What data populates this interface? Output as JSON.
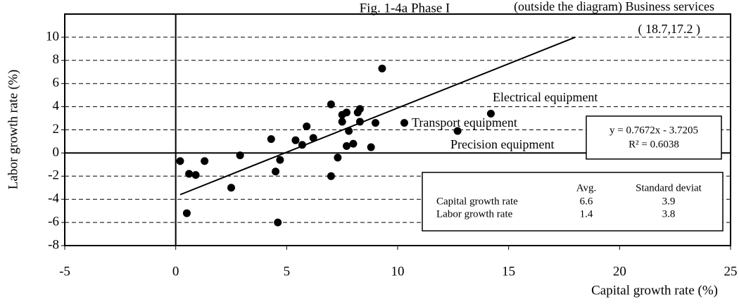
{
  "chart_data": {
    "type": "scatter",
    "title": "Fig. 1-4a    Phase I",
    "x_label": "Capital growth rate (%)",
    "y_label": "Labor growth rate (%)",
    "color": "#000000",
    "x": [
      0.2,
      0.6,
      0.9,
      1.3,
      0.5,
      2.9,
      2.5,
      4.3,
      4.5,
      4.7,
      4.6,
      5.4,
      5.7,
      5.9,
      6.2,
      7.0,
      7.0,
      7.3,
      7.5,
      7.5,
      7.7,
      7.7,
      7.8,
      8.0,
      8.2,
      8.3,
      8.3,
      8.8,
      9.0,
      9.3,
      10.3,
      12.7,
      14.2
    ],
    "values": [
      -0.7,
      -1.8,
      -1.9,
      -0.7,
      -5.2,
      -0.2,
      -3.0,
      1.2,
      -1.6,
      -0.6,
      -6.0,
      1.1,
      0.7,
      2.3,
      1.3,
      4.2,
      -2.0,
      -0.4,
      3.3,
      2.7,
      3.5,
      0.6,
      1.9,
      0.8,
      3.5,
      3.8,
      2.7,
      0.5,
      2.6,
      7.3,
      2.6,
      1.9,
      3.4
    ],
    "trendline": {
      "x": [
        0.2,
        18.0
      ],
      "values": [
        -3.6,
        10.0
      ]
    },
    "xlim": [
      -5,
      25
    ],
    "xticks": [
      -5,
      0,
      5,
      10,
      15,
      20,
      25
    ],
    "ylim": [
      -8,
      12
    ],
    "yticks": [
      -8,
      -6,
      -4,
      -2,
      0,
      2,
      4,
      6,
      8,
      10
    ],
    "grid": true,
    "annotations": [
      "(outside the diagram) Business services",
      "( 18.7,17.2 )",
      "Electrical equipment",
      "Transport equipment",
      "Precision equipment"
    ],
    "equation": [
      "y = 0.7672x - 3.7205",
      "R² = 0.6038"
    ],
    "stats_table": {
      "columns": [
        "Avg.",
        "Standard deviat"
      ],
      "rows": [
        {
          "label": "Capital growth rate",
          "values": [
            "6.6",
            "3.9"
          ]
        },
        {
          "label": "Labor growth rate",
          "values": [
            "1.4",
            "3.8"
          ]
        }
      ]
    }
  }
}
